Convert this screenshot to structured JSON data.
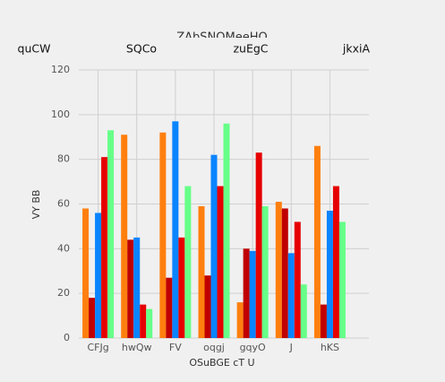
{
  "chart_data": {
    "type": "bar",
    "title": "ZAbSNQMeeHQ",
    "x_label": "OSuBGE cT U",
    "y_label": "VY BB",
    "categories": [
      "CFJg",
      "hwQw",
      "FV",
      "oqgj",
      "gqyO",
      "J",
      "hKS"
    ],
    "series": [
      {
        "name": "quCW",
        "color": "#ff7f0e",
        "values": [
          58,
          91,
          92,
          59,
          16,
          61,
          86
        ]
      },
      {
        "name": "SQCo",
        "color": "#c00000",
        "values": [
          18,
          44,
          27,
          28,
          40,
          58,
          15
        ]
      },
      {
        "name": "zuEgC",
        "color": "#0a84ff",
        "values": [
          56,
          45,
          97,
          82,
          39,
          38,
          57
        ]
      },
      {
        "name": "jkxiA",
        "color": "#e60000",
        "values": [
          81,
          15,
          45,
          68,
          83,
          52,
          68
        ]
      },
      {
        "color": "#66ff88",
        "values": [
          93,
          13,
          68,
          96,
          59,
          24,
          52
        ]
      }
    ],
    "ylim": [
      0,
      120
    ],
    "yticks": [
      0,
      20,
      40,
      60,
      80,
      100,
      120
    ],
    "grid": true
  }
}
